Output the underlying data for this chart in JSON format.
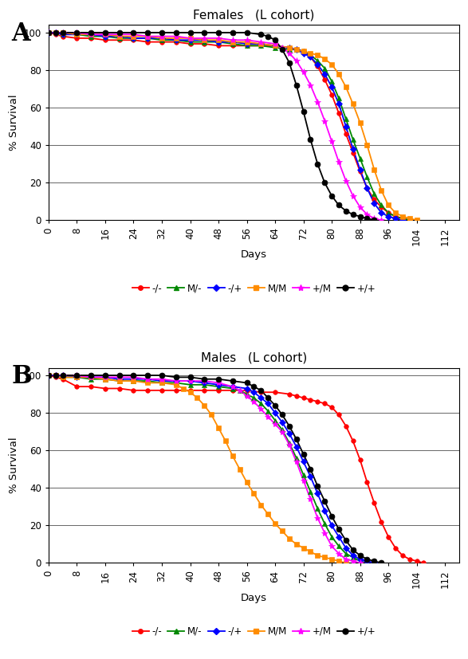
{
  "panel_A_title": "Females   (L cohort)",
  "panel_B_title": "Males   (L cohort)",
  "xlabel": "Days",
  "ylabel": "% Survival",
  "xticks": [
    0,
    8,
    16,
    24,
    32,
    40,
    48,
    56,
    64,
    72,
    80,
    88,
    96,
    104,
    112
  ],
  "yticks": [
    0,
    20,
    40,
    60,
    80,
    100
  ],
  "xlim": [
    0,
    116
  ],
  "ylim": [
    0,
    104
  ],
  "series_info": {
    "-/-": {
      "color": "#ff0000",
      "marker": "o",
      "ms": 4
    },
    "M/-": {
      "color": "#008800",
      "marker": "^",
      "ms": 5
    },
    "-/+": {
      "color": "#0000ff",
      "marker": "D",
      "ms": 4
    },
    "M/M": {
      "color": "#ff8c00",
      "marker": "s",
      "ms": 4
    },
    "+/M": {
      "color": "#ff00ff",
      "marker": "*",
      "ms": 6
    },
    "+/+": {
      "color": "#000000",
      "marker": "o",
      "ms": 5
    }
  },
  "labels_order": [
    "-/-",
    "M/-",
    "-/+",
    "M/M",
    "+/M",
    "+/+"
  ],
  "females": {
    "-/-": [
      [
        0,
        100
      ],
      [
        2,
        99
      ],
      [
        4,
        98
      ],
      [
        8,
        97
      ],
      [
        12,
        97
      ],
      [
        16,
        96
      ],
      [
        20,
        96
      ],
      [
        24,
        96
      ],
      [
        28,
        95
      ],
      [
        32,
        95
      ],
      [
        36,
        95
      ],
      [
        40,
        94
      ],
      [
        44,
        94
      ],
      [
        48,
        93
      ],
      [
        52,
        93
      ],
      [
        56,
        93
      ],
      [
        60,
        93
      ],
      [
        64,
        93
      ],
      [
        68,
        92
      ],
      [
        70,
        91
      ],
      [
        72,
        90
      ],
      [
        74,
        87
      ],
      [
        76,
        82
      ],
      [
        78,
        75
      ],
      [
        80,
        67
      ],
      [
        82,
        57
      ],
      [
        84,
        46
      ],
      [
        86,
        36
      ],
      [
        88,
        26
      ],
      [
        90,
        17
      ],
      [
        92,
        11
      ],
      [
        94,
        7
      ],
      [
        96,
        4
      ],
      [
        98,
        2
      ],
      [
        100,
        1
      ],
      [
        102,
        0
      ]
    ],
    "M/-": [
      [
        0,
        100
      ],
      [
        2,
        100
      ],
      [
        4,
        99
      ],
      [
        8,
        99
      ],
      [
        12,
        98
      ],
      [
        16,
        98
      ],
      [
        20,
        97
      ],
      [
        24,
        97
      ],
      [
        28,
        97
      ],
      [
        32,
        96
      ],
      [
        36,
        96
      ],
      [
        40,
        95
      ],
      [
        44,
        95
      ],
      [
        48,
        95
      ],
      [
        52,
        94
      ],
      [
        56,
        93
      ],
      [
        60,
        93
      ],
      [
        64,
        92
      ],
      [
        68,
        91
      ],
      [
        70,
        91
      ],
      [
        72,
        90
      ],
      [
        74,
        88
      ],
      [
        76,
        85
      ],
      [
        78,
        81
      ],
      [
        80,
        74
      ],
      [
        82,
        65
      ],
      [
        84,
        54
      ],
      [
        86,
        43
      ],
      [
        88,
        33
      ],
      [
        90,
        23
      ],
      [
        92,
        14
      ],
      [
        94,
        8
      ],
      [
        96,
        4
      ],
      [
        98,
        2
      ],
      [
        100,
        1
      ],
      [
        102,
        0
      ]
    ],
    "-/+": [
      [
        0,
        100
      ],
      [
        2,
        100
      ],
      [
        4,
        99
      ],
      [
        8,
        99
      ],
      [
        12,
        99
      ],
      [
        16,
        98
      ],
      [
        20,
        98
      ],
      [
        24,
        97
      ],
      [
        28,
        97
      ],
      [
        32,
        97
      ],
      [
        36,
        96
      ],
      [
        40,
        96
      ],
      [
        44,
        96
      ],
      [
        48,
        95
      ],
      [
        52,
        95
      ],
      [
        56,
        94
      ],
      [
        60,
        94
      ],
      [
        64,
        93
      ],
      [
        68,
        92
      ],
      [
        70,
        91
      ],
      [
        72,
        89
      ],
      [
        74,
        87
      ],
      [
        76,
        83
      ],
      [
        78,
        78
      ],
      [
        80,
        71
      ],
      [
        82,
        62
      ],
      [
        84,
        50
      ],
      [
        86,
        38
      ],
      [
        88,
        27
      ],
      [
        90,
        17
      ],
      [
        92,
        9
      ],
      [
        94,
        4
      ],
      [
        96,
        2
      ],
      [
        98,
        1
      ],
      [
        100,
        0
      ]
    ],
    "M/M": [
      [
        0,
        100
      ],
      [
        2,
        100
      ],
      [
        4,
        100
      ],
      [
        8,
        99
      ],
      [
        12,
        99
      ],
      [
        16,
        99
      ],
      [
        20,
        98
      ],
      [
        24,
        98
      ],
      [
        28,
        98
      ],
      [
        32,
        97
      ],
      [
        36,
        97
      ],
      [
        40,
        97
      ],
      [
        44,
        96
      ],
      [
        48,
        96
      ],
      [
        52,
        95
      ],
      [
        56,
        95
      ],
      [
        60,
        94
      ],
      [
        64,
        93
      ],
      [
        68,
        92
      ],
      [
        70,
        91
      ],
      [
        72,
        90
      ],
      [
        74,
        89
      ],
      [
        76,
        88
      ],
      [
        78,
        86
      ],
      [
        80,
        83
      ],
      [
        82,
        78
      ],
      [
        84,
        71
      ],
      [
        86,
        62
      ],
      [
        88,
        52
      ],
      [
        90,
        40
      ],
      [
        92,
        27
      ],
      [
        94,
        16
      ],
      [
        96,
        8
      ],
      [
        98,
        4
      ],
      [
        100,
        2
      ],
      [
        102,
        1
      ],
      [
        104,
        0
      ]
    ],
    "+/M": [
      [
        0,
        100
      ],
      [
        2,
        100
      ],
      [
        4,
        100
      ],
      [
        8,
        100
      ],
      [
        12,
        99
      ],
      [
        16,
        99
      ],
      [
        20,
        99
      ],
      [
        24,
        99
      ],
      [
        28,
        98
      ],
      [
        32,
        98
      ],
      [
        36,
        98
      ],
      [
        40,
        97
      ],
      [
        44,
        97
      ],
      [
        48,
        97
      ],
      [
        52,
        96
      ],
      [
        56,
        96
      ],
      [
        60,
        95
      ],
      [
        64,
        94
      ],
      [
        66,
        92
      ],
      [
        68,
        89
      ],
      [
        70,
        85
      ],
      [
        72,
        79
      ],
      [
        74,
        72
      ],
      [
        76,
        63
      ],
      [
        78,
        53
      ],
      [
        80,
        42
      ],
      [
        82,
        31
      ],
      [
        84,
        21
      ],
      [
        86,
        13
      ],
      [
        88,
        7
      ],
      [
        90,
        3
      ],
      [
        92,
        1
      ],
      [
        94,
        0
      ]
    ],
    "+/+": [
      [
        0,
        100
      ],
      [
        2,
        100
      ],
      [
        4,
        100
      ],
      [
        8,
        100
      ],
      [
        12,
        100
      ],
      [
        16,
        100
      ],
      [
        20,
        100
      ],
      [
        24,
        100
      ],
      [
        28,
        100
      ],
      [
        32,
        100
      ],
      [
        36,
        100
      ],
      [
        40,
        100
      ],
      [
        44,
        100
      ],
      [
        48,
        100
      ],
      [
        52,
        100
      ],
      [
        56,
        100
      ],
      [
        60,
        99
      ],
      [
        62,
        98
      ],
      [
        64,
        96
      ],
      [
        66,
        91
      ],
      [
        68,
        84
      ],
      [
        70,
        72
      ],
      [
        72,
        58
      ],
      [
        74,
        43
      ],
      [
        76,
        30
      ],
      [
        78,
        20
      ],
      [
        80,
        13
      ],
      [
        82,
        8
      ],
      [
        84,
        5
      ],
      [
        86,
        3
      ],
      [
        88,
        2
      ],
      [
        90,
        1
      ],
      [
        92,
        0
      ]
    ]
  },
  "males": {
    "-/-": [
      [
        0,
        100
      ],
      [
        2,
        99
      ],
      [
        4,
        98
      ],
      [
        8,
        94
      ],
      [
        12,
        94
      ],
      [
        16,
        93
      ],
      [
        20,
        93
      ],
      [
        24,
        92
      ],
      [
        28,
        92
      ],
      [
        32,
        92
      ],
      [
        36,
        92
      ],
      [
        40,
        92
      ],
      [
        44,
        92
      ],
      [
        48,
        92
      ],
      [
        52,
        92
      ],
      [
        56,
        92
      ],
      [
        60,
        91
      ],
      [
        64,
        91
      ],
      [
        68,
        90
      ],
      [
        70,
        89
      ],
      [
        72,
        88
      ],
      [
        74,
        87
      ],
      [
        76,
        86
      ],
      [
        78,
        85
      ],
      [
        80,
        83
      ],
      [
        82,
        79
      ],
      [
        84,
        73
      ],
      [
        86,
        65
      ],
      [
        88,
        55
      ],
      [
        90,
        43
      ],
      [
        92,
        32
      ],
      [
        94,
        22
      ],
      [
        96,
        14
      ],
      [
        98,
        8
      ],
      [
        100,
        4
      ],
      [
        102,
        2
      ],
      [
        104,
        1
      ],
      [
        106,
        0
      ]
    ],
    "M/-": [
      [
        0,
        100
      ],
      [
        2,
        100
      ],
      [
        4,
        99
      ],
      [
        8,
        99
      ],
      [
        12,
        98
      ],
      [
        16,
        98
      ],
      [
        20,
        97
      ],
      [
        24,
        97
      ],
      [
        28,
        97
      ],
      [
        32,
        96
      ],
      [
        36,
        96
      ],
      [
        40,
        95
      ],
      [
        44,
        95
      ],
      [
        48,
        94
      ],
      [
        52,
        93
      ],
      [
        54,
        92
      ],
      [
        56,
        90
      ],
      [
        58,
        88
      ],
      [
        60,
        85
      ],
      [
        62,
        81
      ],
      [
        64,
        76
      ],
      [
        66,
        71
      ],
      [
        68,
        64
      ],
      [
        70,
        56
      ],
      [
        72,
        47
      ],
      [
        74,
        38
      ],
      [
        76,
        29
      ],
      [
        78,
        21
      ],
      [
        80,
        14
      ],
      [
        82,
        9
      ],
      [
        84,
        5
      ],
      [
        86,
        3
      ],
      [
        88,
        1
      ],
      [
        90,
        0
      ]
    ],
    "-/+": [
      [
        0,
        100
      ],
      [
        2,
        100
      ],
      [
        4,
        100
      ],
      [
        8,
        99
      ],
      [
        12,
        99
      ],
      [
        16,
        99
      ],
      [
        20,
        98
      ],
      [
        24,
        98
      ],
      [
        28,
        98
      ],
      [
        32,
        97
      ],
      [
        36,
        97
      ],
      [
        40,
        97
      ],
      [
        44,
        96
      ],
      [
        48,
        95
      ],
      [
        52,
        94
      ],
      [
        56,
        93
      ],
      [
        58,
        91
      ],
      [
        60,
        88
      ],
      [
        62,
        85
      ],
      [
        64,
        80
      ],
      [
        66,
        75
      ],
      [
        68,
        69
      ],
      [
        70,
        62
      ],
      [
        72,
        54
      ],
      [
        74,
        46
      ],
      [
        76,
        37
      ],
      [
        78,
        28
      ],
      [
        80,
        20
      ],
      [
        82,
        14
      ],
      [
        84,
        8
      ],
      [
        86,
        4
      ],
      [
        88,
        2
      ],
      [
        90,
        1
      ],
      [
        92,
        0
      ]
    ],
    "M/M": [
      [
        0,
        100
      ],
      [
        2,
        100
      ],
      [
        4,
        99
      ],
      [
        8,
        99
      ],
      [
        12,
        99
      ],
      [
        16,
        98
      ],
      [
        20,
        97
      ],
      [
        24,
        97
      ],
      [
        28,
        96
      ],
      [
        32,
        96
      ],
      [
        36,
        95
      ],
      [
        38,
        93
      ],
      [
        40,
        91
      ],
      [
        42,
        88
      ],
      [
        44,
        84
      ],
      [
        46,
        79
      ],
      [
        48,
        72
      ],
      [
        50,
        65
      ],
      [
        52,
        57
      ],
      [
        54,
        50
      ],
      [
        56,
        43
      ],
      [
        58,
        37
      ],
      [
        60,
        31
      ],
      [
        62,
        26
      ],
      [
        64,
        21
      ],
      [
        66,
        17
      ],
      [
        68,
        13
      ],
      [
        70,
        10
      ],
      [
        72,
        8
      ],
      [
        74,
        6
      ],
      [
        76,
        4
      ],
      [
        78,
        3
      ],
      [
        80,
        2
      ],
      [
        82,
        1
      ],
      [
        84,
        0
      ]
    ],
    "+/M": [
      [
        0,
        100
      ],
      [
        2,
        100
      ],
      [
        4,
        100
      ],
      [
        8,
        100
      ],
      [
        12,
        99
      ],
      [
        16,
        99
      ],
      [
        20,
        99
      ],
      [
        24,
        99
      ],
      [
        28,
        98
      ],
      [
        32,
        98
      ],
      [
        36,
        97
      ],
      [
        40,
        97
      ],
      [
        44,
        97
      ],
      [
        48,
        96
      ],
      [
        52,
        94
      ],
      [
        54,
        92
      ],
      [
        56,
        89
      ],
      [
        58,
        86
      ],
      [
        60,
        82
      ],
      [
        62,
        78
      ],
      [
        64,
        74
      ],
      [
        66,
        70
      ],
      [
        68,
        63
      ],
      [
        70,
        54
      ],
      [
        72,
        44
      ],
      [
        74,
        34
      ],
      [
        76,
        24
      ],
      [
        78,
        16
      ],
      [
        80,
        9
      ],
      [
        82,
        5
      ],
      [
        84,
        2
      ],
      [
        86,
        1
      ],
      [
        88,
        0
      ]
    ],
    "+/+": [
      [
        0,
        100
      ],
      [
        2,
        100
      ],
      [
        4,
        100
      ],
      [
        8,
        100
      ],
      [
        12,
        100
      ],
      [
        16,
        100
      ],
      [
        20,
        100
      ],
      [
        24,
        100
      ],
      [
        28,
        100
      ],
      [
        32,
        100
      ],
      [
        36,
        99
      ],
      [
        40,
        99
      ],
      [
        44,
        98
      ],
      [
        48,
        98
      ],
      [
        52,
        97
      ],
      [
        56,
        96
      ],
      [
        58,
        94
      ],
      [
        60,
        92
      ],
      [
        62,
        88
      ],
      [
        64,
        84
      ],
      [
        66,
        79
      ],
      [
        68,
        73
      ],
      [
        70,
        66
      ],
      [
        72,
        58
      ],
      [
        74,
        50
      ],
      [
        76,
        41
      ],
      [
        78,
        33
      ],
      [
        80,
        25
      ],
      [
        82,
        18
      ],
      [
        84,
        12
      ],
      [
        86,
        7
      ],
      [
        88,
        4
      ],
      [
        90,
        2
      ],
      [
        92,
        1
      ],
      [
        94,
        0
      ]
    ]
  }
}
